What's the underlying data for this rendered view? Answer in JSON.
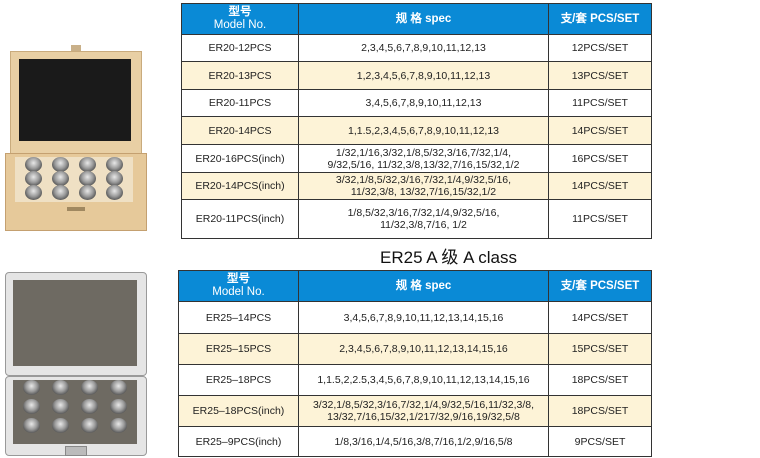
{
  "columns": {
    "model_cn": "型号",
    "model_en": "Model No.",
    "spec": "规 格 spec",
    "pcs": "支/套 PCS/SET"
  },
  "er20_table": {
    "rows": [
      {
        "model": "ER20-12PCS",
        "spec": [
          "2,3,4,5,6,7,8,9,10,11,12,13"
        ],
        "pcs": "12PCS/SET"
      },
      {
        "model": "ER20-13PCS",
        "spec": [
          "1,2,3,4,5,6,7,8,9,10,11,12,13"
        ],
        "pcs": "13PCS/SET"
      },
      {
        "model": "ER20-11PCS",
        "spec": [
          "3,4,5,6,7,8,9,10,11,12,13"
        ],
        "pcs": "11PCS/SET"
      },
      {
        "model": "ER20-14PCS",
        "spec": [
          "1,1.5,2,3,4,5,6,7,8,9,10,11,12,13"
        ],
        "pcs": "14PCS/SET"
      },
      {
        "model": "ER20-16PCS(inch)",
        "spec": [
          "1/32,1/16,3/32,1/8,5/32,3/16,7/32,1/4,",
          "9/32,5/16, 11/32,3/8,13/32,7/16,15/32,1/2"
        ],
        "pcs": "16PCS/SET"
      },
      {
        "model": "ER20-14PCS(inch)",
        "spec": [
          "3/32,1/8,5/32,3/16,7/32,1/4,9/32,5/16,",
          "11/32,3/8, 13/32,7/16,15/32,1/2"
        ],
        "pcs": "14PCS/SET"
      },
      {
        "model": "ER20-11PCS(inch)",
        "spec": [
          "1/8,5/32,3/16,7/32,1/4,9/32,5/16,",
          "11/32,3/8,7/16, 1/2"
        ],
        "pcs": "11PCS/SET"
      }
    ]
  },
  "er25_section": {
    "title": "ER25 A 级 A class"
  },
  "er25_table": {
    "rows": [
      {
        "model": "ER25–14PCS",
        "spec": [
          "3,4,5,6,7,8,9,10,11,12,13,14,15,16"
        ],
        "pcs": "14PCS/SET"
      },
      {
        "model": "ER25–15PCS",
        "spec": [
          "2,3,4,5,6,7,8,9,10,11,12,13,14,15,16"
        ],
        "pcs": "15PCS/SET"
      },
      {
        "model": "ER25–18PCS",
        "spec": [
          "1,1.5,2,2.5,3,4,5,6,7,8,9,10,11,12,13,14,15,16"
        ],
        "pcs": "18PCS/SET"
      },
      {
        "model": "ER25–18PCS(inch)",
        "spec": [
          "3/32,1/8,5/32,3/16,7/32,1/4,9/32,5/16,11/32,3/8,",
          "13/32,7/16,15/32,1/217/32,9/16,19/32,5/8"
        ],
        "pcs": "18PCS/SET"
      },
      {
        "model": "ER25–9PCS(inch)",
        "spec": [
          "1/8,3/16,1/4,5/16,3/8,7/16,1/2,9/16,5/8"
        ],
        "pcs": "9PCS/SET"
      }
    ]
  },
  "colors": {
    "header_blue": "#0a8ad6",
    "row_highlight": "#fdf3d7"
  },
  "images": [
    "wooden-collet-box-image",
    "aluminum-collet-case-image"
  ]
}
